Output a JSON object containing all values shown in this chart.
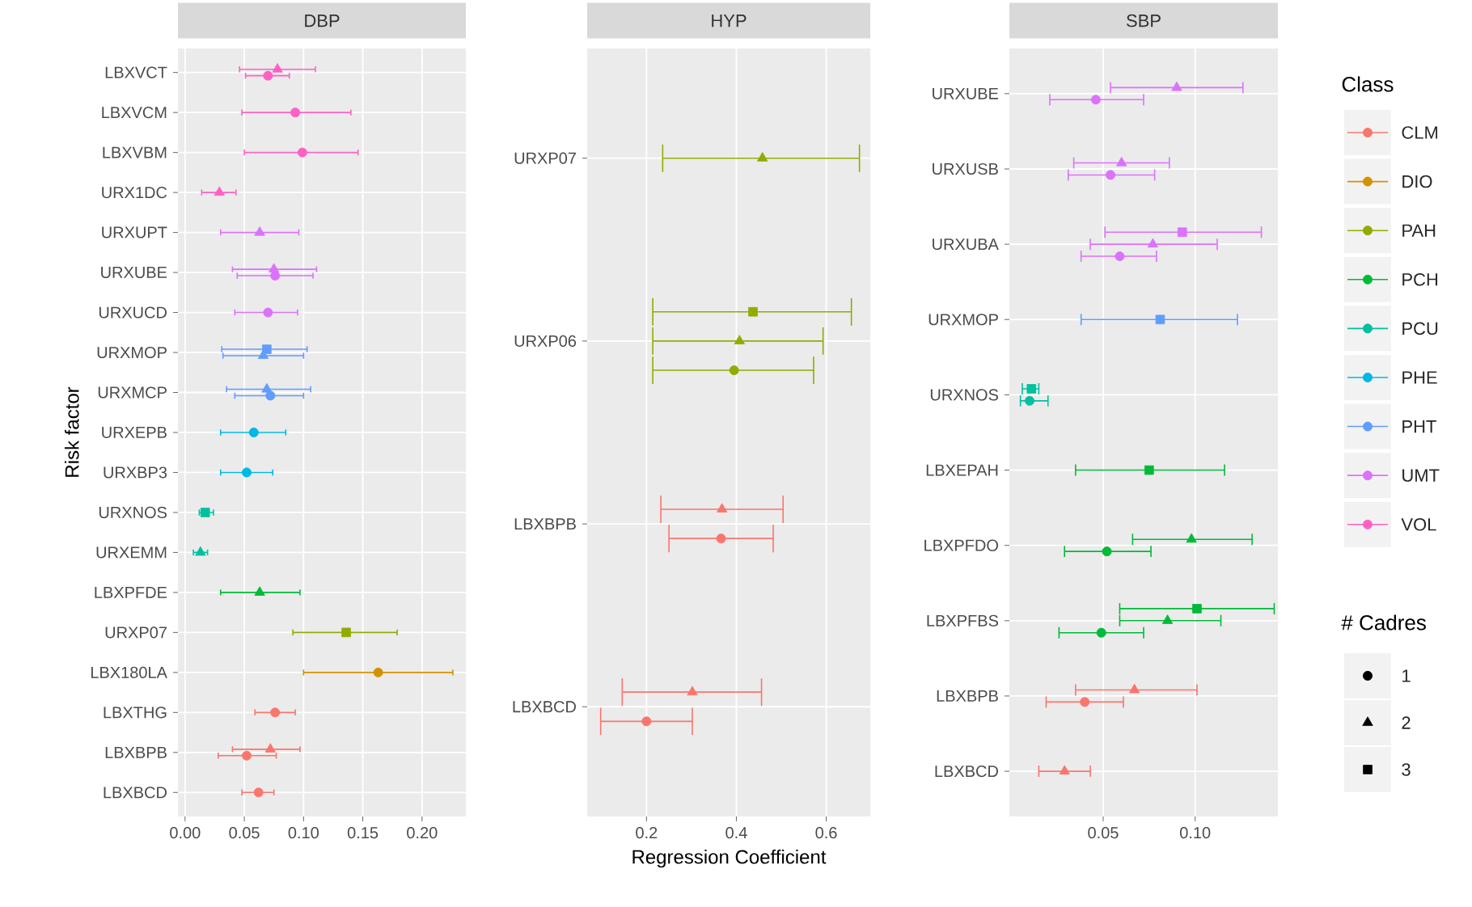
{
  "chart_data": [
    {
      "type": "scatter",
      "orientation": "horizontal",
      "title": "DBP",
      "ylabel": "Risk factor",
      "grid": true,
      "categories": [
        "LBXVCT",
        "LBXVCM",
        "LBXVBM",
        "URX1DC",
        "URXUPT",
        "URXUBE",
        "URXUCD",
        "URXMOP",
        "URXMCP",
        "URXEPB",
        "URXBP3",
        "URXNOS",
        "URXEMM",
        "LBXPFDE",
        "URXP07",
        "LBX180LA",
        "LBXTHG",
        "LBXBPB",
        "LBXBCD"
      ],
      "xlim": [
        -0.006,
        0.237
      ],
      "xticks": [
        {
          "value": 0,
          "label": "0.00"
        },
        {
          "value": 0.05,
          "label": "0.05"
        },
        {
          "value": 0.1,
          "label": "0.10"
        },
        {
          "value": 0.15,
          "label": "0.15"
        },
        {
          "value": 0.2,
          "label": "0.20"
        }
      ],
      "series": [
        {
          "color": "#F8766D",
          "marker": "circle",
          "values": [
            null,
            null,
            null,
            null,
            null,
            null,
            null,
            null,
            null,
            null,
            null,
            null,
            null,
            null,
            null,
            null,
            0.076,
            0.052,
            0.062
          ],
          "errors": [
            null,
            null,
            null,
            null,
            null,
            null,
            null,
            null,
            null,
            null,
            null,
            null,
            null,
            null,
            null,
            null,
            [
              0.059,
              0.093
            ],
            [
              0.028,
              0.077
            ],
            [
              0.048,
              0.075
            ]
          ]
        },
        {
          "color": "#F8766D",
          "marker": "triangle",
          "values": [
            null,
            null,
            null,
            null,
            null,
            null,
            null,
            null,
            null,
            null,
            null,
            null,
            null,
            null,
            null,
            null,
            null,
            0.072,
            null
          ],
          "errors": [
            null,
            null,
            null,
            null,
            null,
            null,
            null,
            null,
            null,
            null,
            null,
            null,
            null,
            null,
            null,
            null,
            null,
            [
              0.04,
              0.097
            ],
            null
          ]
        },
        {
          "color": "#D39200",
          "marker": "circle",
          "values": [
            null,
            null,
            null,
            null,
            null,
            null,
            null,
            null,
            null,
            null,
            null,
            null,
            null,
            null,
            null,
            0.163,
            null,
            null,
            null
          ],
          "errors": [
            null,
            null,
            null,
            null,
            null,
            null,
            null,
            null,
            null,
            null,
            null,
            null,
            null,
            null,
            null,
            [
              0.1,
              0.226
            ],
            null,
            null,
            null
          ]
        },
        {
          "color": "#93AA00",
          "marker": "square",
          "values": [
            null,
            null,
            null,
            null,
            null,
            null,
            null,
            null,
            null,
            null,
            null,
            null,
            null,
            null,
            0.136,
            null,
            null,
            null,
            null
          ],
          "errors": [
            null,
            null,
            null,
            null,
            null,
            null,
            null,
            null,
            null,
            null,
            null,
            null,
            null,
            null,
            [
              0.091,
              0.179
            ],
            null,
            null,
            null,
            null
          ]
        },
        {
          "color": "#00BA38",
          "marker": "triangle",
          "values": [
            null,
            null,
            null,
            null,
            null,
            null,
            null,
            null,
            null,
            null,
            null,
            null,
            null,
            0.063,
            null,
            null,
            null,
            null,
            null
          ],
          "errors": [
            null,
            null,
            null,
            null,
            null,
            null,
            null,
            null,
            null,
            null,
            null,
            null,
            null,
            [
              0.03,
              0.097
            ],
            null,
            null,
            null,
            null,
            null
          ]
        },
        {
          "color": "#00C19F",
          "marker": "triangle",
          "values": [
            null,
            null,
            null,
            null,
            null,
            null,
            null,
            null,
            null,
            null,
            null,
            null,
            0.013,
            null,
            null,
            null,
            null,
            null,
            null
          ],
          "errors": [
            null,
            null,
            null,
            null,
            null,
            null,
            null,
            null,
            null,
            null,
            null,
            null,
            [
              0.007,
              0.019
            ],
            null,
            null,
            null,
            null,
            null,
            null
          ]
        },
        {
          "color": "#00C19F",
          "marker": "square",
          "values": [
            null,
            null,
            null,
            null,
            null,
            null,
            null,
            null,
            null,
            null,
            null,
            0.017,
            null,
            null,
            null,
            null,
            null,
            null,
            null
          ],
          "errors": [
            null,
            null,
            null,
            null,
            null,
            null,
            null,
            null,
            null,
            null,
            null,
            [
              0.012,
              0.024
            ],
            null,
            null,
            null,
            null,
            null,
            null,
            null
          ]
        },
        {
          "color": "#00B9E3",
          "marker": "circle",
          "values": [
            null,
            null,
            null,
            null,
            null,
            null,
            null,
            null,
            null,
            0.058,
            0.052,
            null,
            null,
            null,
            null,
            null,
            null,
            null,
            null
          ],
          "errors": [
            null,
            null,
            null,
            null,
            null,
            null,
            null,
            null,
            null,
            [
              0.03,
              0.085
            ],
            [
              0.03,
              0.074
            ],
            null,
            null,
            null,
            null,
            null,
            null,
            null,
            null
          ]
        },
        {
          "color": "#619CFF",
          "marker": "circle",
          "values": [
            null,
            null,
            null,
            null,
            null,
            null,
            null,
            null,
            0.072,
            null,
            null,
            null,
            null,
            null,
            null,
            null,
            null,
            null,
            null
          ],
          "errors": [
            null,
            null,
            null,
            null,
            null,
            null,
            null,
            null,
            [
              0.042,
              0.1
            ],
            null,
            null,
            null,
            null,
            null,
            null,
            null,
            null,
            null,
            null
          ]
        },
        {
          "color": "#619CFF",
          "marker": "triangle",
          "values": [
            null,
            null,
            null,
            null,
            null,
            null,
            null,
            0.066,
            0.069,
            null,
            null,
            null,
            null,
            null,
            null,
            null,
            null,
            null,
            null
          ],
          "errors": [
            null,
            null,
            null,
            null,
            null,
            null,
            null,
            [
              0.032,
              0.1
            ],
            [
              0.035,
              0.106
            ],
            null,
            null,
            null,
            null,
            null,
            null,
            null,
            null,
            null,
            null
          ]
        },
        {
          "color": "#619CFF",
          "marker": "square",
          "values": [
            null,
            null,
            null,
            null,
            null,
            null,
            null,
            0.069,
            null,
            null,
            null,
            null,
            null,
            null,
            null,
            null,
            null,
            null,
            null
          ],
          "errors": [
            null,
            null,
            null,
            null,
            null,
            null,
            null,
            [
              0.031,
              0.103
            ],
            null,
            null,
            null,
            null,
            null,
            null,
            null,
            null,
            null,
            null,
            null
          ]
        },
        {
          "color": "#DB72FB",
          "marker": "circle",
          "values": [
            null,
            null,
            null,
            null,
            null,
            0.076,
            0.07,
            null,
            null,
            null,
            null,
            null,
            null,
            null,
            null,
            null,
            null,
            null,
            null
          ],
          "errors": [
            null,
            null,
            null,
            null,
            null,
            [
              0.044,
              0.108
            ],
            [
              0.042,
              0.095
            ],
            null,
            null,
            null,
            null,
            null,
            null,
            null,
            null,
            null,
            null,
            null,
            null
          ]
        },
        {
          "color": "#DB72FB",
          "marker": "triangle",
          "values": [
            null,
            null,
            null,
            null,
            0.063,
            0.075,
            null,
            null,
            null,
            null,
            null,
            null,
            null,
            null,
            null,
            null,
            null,
            null,
            null
          ],
          "errors": [
            null,
            null,
            null,
            null,
            [
              0.03,
              0.096
            ],
            [
              0.04,
              0.111
            ],
            null,
            null,
            null,
            null,
            null,
            null,
            null,
            null,
            null,
            null,
            null,
            null,
            null
          ]
        },
        {
          "color": "#FF61C3",
          "marker": "circle",
          "values": [
            0.07,
            0.093,
            0.099,
            null,
            null,
            null,
            null,
            null,
            null,
            null,
            null,
            null,
            null,
            null,
            null,
            null,
            null,
            null,
            null
          ],
          "errors": [
            [
              0.051,
              0.088
            ],
            [
              0.048,
              0.14
            ],
            [
              0.05,
              0.146
            ],
            null,
            null,
            null,
            null,
            null,
            null,
            null,
            null,
            null,
            null,
            null,
            null,
            null,
            null,
            null,
            null
          ]
        },
        {
          "color": "#FF61C3",
          "marker": "triangle",
          "values": [
            0.078,
            null,
            null,
            0.029,
            null,
            null,
            null,
            null,
            null,
            null,
            null,
            null,
            null,
            null,
            null,
            null,
            null,
            null,
            null
          ],
          "errors": [
            [
              0.046,
              0.11
            ],
            null,
            null,
            [
              0.014,
              0.043
            ],
            null,
            null,
            null,
            null,
            null,
            null,
            null,
            null,
            null,
            null,
            null,
            null,
            null,
            null,
            null
          ]
        }
      ]
    },
    {
      "type": "scatter",
      "orientation": "horizontal",
      "title": "HYP",
      "xlabel": "Regression Coefficient",
      "grid": true,
      "categories": [
        "URXP07",
        "URXP06",
        "LBXBPB",
        "LBXBCD"
      ],
      "xlim": [
        0.068,
        0.698
      ],
      "xticks": [
        0.2,
        0.4,
        0.6
      ],
      "series": [
        {
          "color": "#F8766D",
          "marker": "circle",
          "values": [
            null,
            null,
            0.366,
            0.2
          ],
          "errors": [
            null,
            null,
            [
              0.25,
              0.482
            ],
            [
              0.098,
              0.302
            ]
          ]
        },
        {
          "color": "#F8766D",
          "marker": "triangle",
          "values": [
            null,
            null,
            0.368,
            0.302
          ],
          "errors": [
            null,
            null,
            [
              0.232,
              0.504
            ],
            [
              0.146,
              0.456
            ]
          ]
        },
        {
          "color": "#93AA00",
          "marker": "circle",
          "values": [
            null,
            0.395,
            null,
            null
          ],
          "errors": [
            null,
            [
              0.214,
              0.572
            ],
            null,
            null
          ]
        },
        {
          "color": "#93AA00",
          "marker": "triangle",
          "values": [
            0.458,
            0.407,
            null,
            null
          ],
          "errors": [
            [
              0.236,
              0.674
            ],
            [
              0.214,
              0.593
            ],
            null,
            null
          ]
        },
        {
          "color": "#93AA00",
          "marker": "square",
          "values": [
            null,
            0.437,
            null,
            null
          ],
          "errors": [
            null,
            [
              0.214,
              0.656
            ],
            null,
            null
          ]
        }
      ]
    },
    {
      "type": "scatter",
      "orientation": "horizontal",
      "title": "SBP",
      "grid": true,
      "categories": [
        "URXUBE",
        "URXUSB",
        "URXUBA",
        "URXMOP",
        "URXNOS",
        "LBXEPAH",
        "LBXPFDO",
        "LBXPFBS",
        "LBXBPB",
        "LBXBCD"
      ],
      "xlim": [
        -0.001,
        0.145
      ],
      "xticks": [
        {
          "value": 0.05,
          "label": "0.05"
        },
        {
          "value": 0.1,
          "label": "0.10"
        }
      ],
      "series": [
        {
          "color": "#F8766D",
          "marker": "circle",
          "values": [
            null,
            null,
            null,
            null,
            null,
            null,
            null,
            null,
            0.04,
            null
          ],
          "errors": [
            null,
            null,
            null,
            null,
            null,
            null,
            null,
            null,
            [
              0.019,
              0.061
            ],
            null
          ]
        },
        {
          "color": "#F8766D",
          "marker": "triangle",
          "values": [
            null,
            null,
            null,
            null,
            null,
            null,
            null,
            null,
            0.067,
            0.029
          ],
          "errors": [
            null,
            null,
            null,
            null,
            null,
            null,
            null,
            null,
            [
              0.035,
              0.101
            ],
            [
              0.015,
              0.043
            ]
          ]
        },
        {
          "color": "#00BA38",
          "marker": "circle",
          "values": [
            null,
            null,
            null,
            null,
            null,
            null,
            0.052,
            0.049,
            null,
            null
          ],
          "errors": [
            null,
            null,
            null,
            null,
            null,
            null,
            [
              0.029,
              0.076
            ],
            [
              0.026,
              0.072
            ],
            null,
            null
          ]
        },
        {
          "color": "#00BA38",
          "marker": "triangle",
          "values": [
            null,
            null,
            null,
            null,
            null,
            null,
            0.098,
            0.085,
            null,
            null
          ],
          "errors": [
            null,
            null,
            null,
            null,
            null,
            null,
            [
              0.066,
              0.131
            ],
            [
              0.059,
              0.114
            ],
            null,
            null
          ]
        },
        {
          "color": "#00BA38",
          "marker": "square",
          "values": [
            null,
            null,
            null,
            null,
            null,
            0.075,
            null,
            0.101,
            null,
            null
          ],
          "errors": [
            null,
            null,
            null,
            null,
            null,
            [
              0.035,
              0.116
            ],
            null,
            [
              0.059,
              0.143
            ],
            null,
            null
          ]
        },
        {
          "color": "#00C19F",
          "marker": "circle",
          "values": [
            null,
            null,
            null,
            null,
            0.01,
            null,
            null,
            null,
            null,
            null
          ],
          "errors": [
            null,
            null,
            null,
            null,
            [
              0.005,
              0.02
            ],
            null,
            null,
            null,
            null,
            null
          ]
        },
        {
          "color": "#00C19F",
          "marker": "square",
          "values": [
            null,
            null,
            null,
            null,
            0.011,
            null,
            null,
            null,
            null,
            null
          ],
          "errors": [
            null,
            null,
            null,
            null,
            [
              0.006,
              0.015
            ],
            null,
            null,
            null,
            null,
            null
          ]
        },
        {
          "color": "#619CFF",
          "marker": "square",
          "values": [
            null,
            null,
            null,
            0.081,
            null,
            null,
            null,
            null,
            null,
            null
          ],
          "errors": [
            null,
            null,
            null,
            [
              0.038,
              0.123
            ],
            null,
            null,
            null,
            null,
            null,
            null
          ]
        },
        {
          "color": "#DB72FB",
          "marker": "circle",
          "values": [
            0.046,
            0.054,
            0.059,
            null,
            null,
            null,
            null,
            null,
            null,
            null
          ],
          "errors": [
            [
              0.021,
              0.072
            ],
            [
              0.031,
              0.078
            ],
            [
              0.038,
              0.079
            ],
            null,
            null,
            null,
            null,
            null,
            null,
            null
          ]
        },
        {
          "color": "#DB72FB",
          "marker": "triangle",
          "values": [
            0.09,
            0.06,
            0.077,
            null,
            null,
            null,
            null,
            null,
            null,
            null
          ],
          "errors": [
            [
              0.054,
              0.126
            ],
            [
              0.034,
              0.086
            ],
            [
              0.043,
              0.112
            ],
            null,
            null,
            null,
            null,
            null,
            null,
            null
          ]
        },
        {
          "color": "#DB72FB",
          "marker": "square",
          "values": [
            null,
            null,
            0.093,
            null,
            null,
            null,
            null,
            null,
            null,
            null
          ],
          "errors": [
            null,
            null,
            [
              0.051,
              0.136
            ],
            null,
            null,
            null,
            null,
            null,
            null,
            null
          ]
        }
      ]
    },
    {
      "type": "other",
      "title": "Class",
      "series": [
        {
          "name": "CLM",
          "color": "#F8766D"
        },
        {
          "name": "DIO",
          "color": "#D39200"
        },
        {
          "name": "PAH",
          "color": "#93AA00"
        },
        {
          "name": "PCH",
          "color": "#00BA38"
        },
        {
          "name": "PCU",
          "color": "#00C19F"
        },
        {
          "name": "PHE",
          "color": "#00B9E3"
        },
        {
          "name": "PHT",
          "color": "#619CFF"
        },
        {
          "name": "UMT",
          "color": "#DB72FB"
        },
        {
          "name": "VOL",
          "color": "#FF61C3"
        }
      ]
    },
    {
      "type": "other",
      "title": "# Cadres",
      "series": [
        {
          "name": "1",
          "marker": "circle",
          "color": "#000000"
        },
        {
          "name": "2",
          "marker": "triangle",
          "color": "#000000"
        },
        {
          "name": "3",
          "marker": "square",
          "color": "#000000"
        }
      ]
    }
  ]
}
